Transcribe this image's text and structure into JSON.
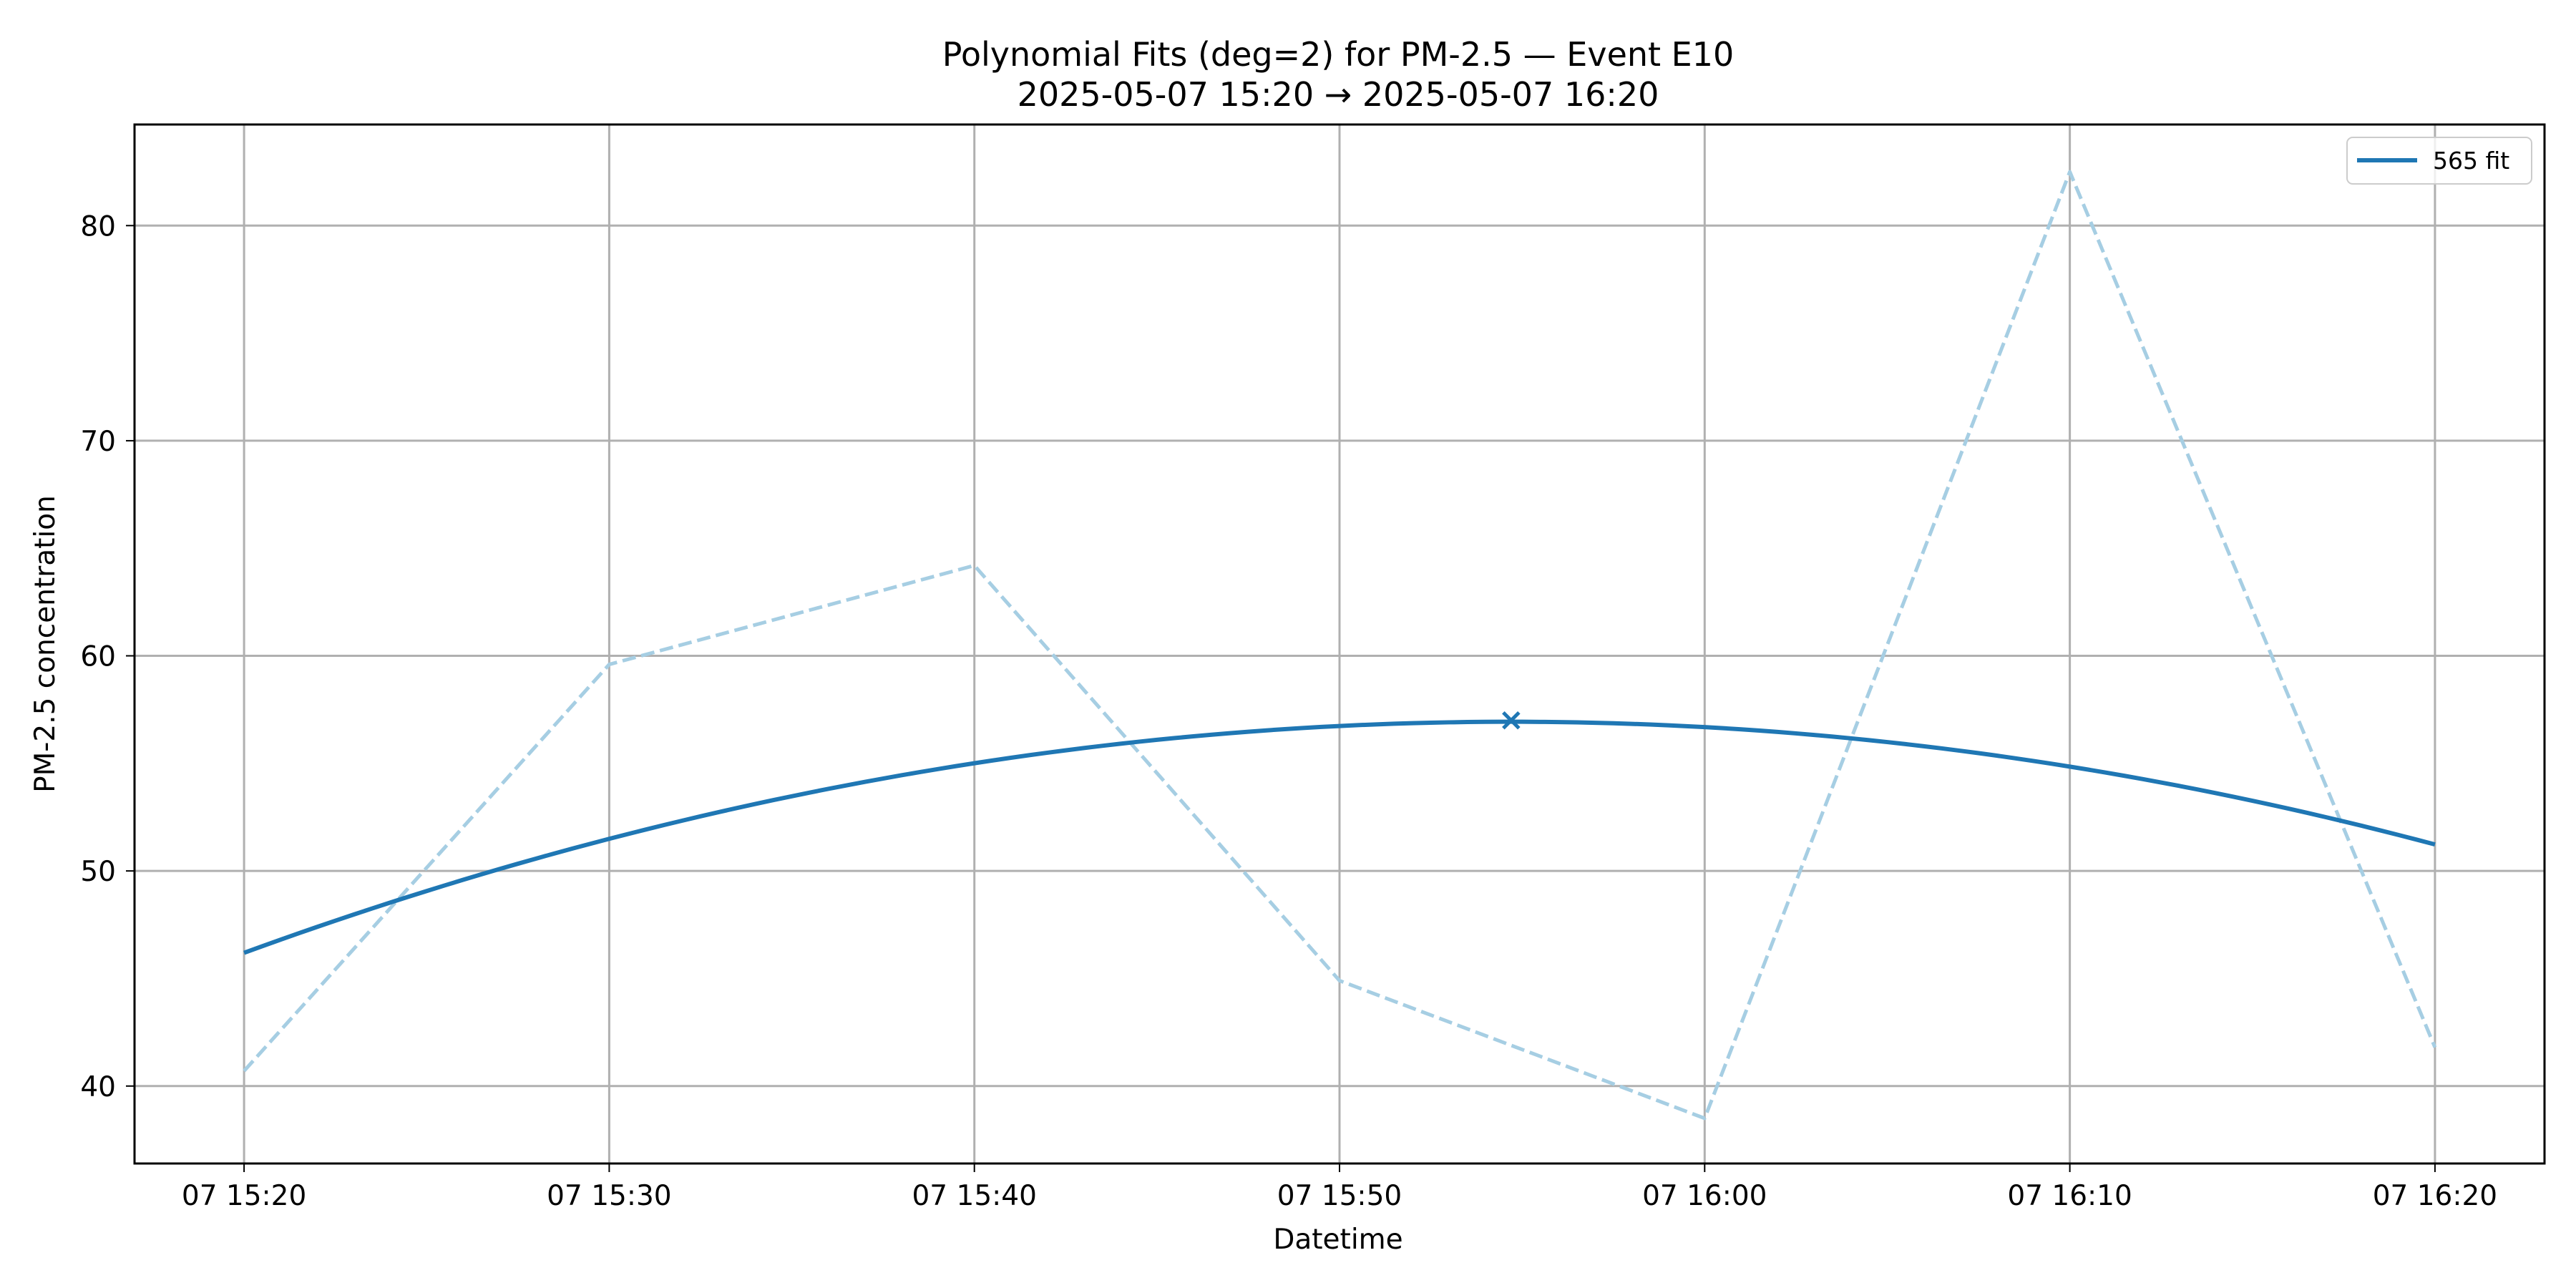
{
  "chart_data": {
    "type": "line",
    "title": "Polynomial Fits (deg=2) for PM-2.5 — Event E10",
    "subtitle": "2025-05-07 15:20 → 2025-05-07 16:20",
    "xlabel": "Datetime",
    "ylabel": "PM-2.5 concentration",
    "x_tick_labels": [
      "07 15:20",
      "07 15:30",
      "07 15:40",
      "07 15:50",
      "07 16:00",
      "07 16:10",
      "07 16:20"
    ],
    "x_ticks": [
      "2025-05-07 15:20",
      "2025-05-07 15:30",
      "2025-05-07 15:40",
      "2025-05-07 15:50",
      "2025-05-07 16:00",
      "2025-05-07 16:10",
      "2025-05-07 16:20"
    ],
    "xlim": [
      "2025-05-07 15:17",
      "2025-05-07 16:23"
    ],
    "y_ticks": [
      40,
      50,
      60,
      70,
      80
    ],
    "ylim": [
      36.4,
      84.7
    ],
    "grid": true,
    "legend_position": "top-right",
    "series": [
      {
        "name": "",
        "style": "dashed",
        "color": "#a6cee3",
        "x": [
          "2025-05-07 15:20",
          "2025-05-07 15:30",
          "2025-05-07 15:40",
          "2025-05-07 15:50",
          "2025-05-07 16:00",
          "2025-05-07 16:10",
          "2025-05-07 16:20"
        ],
        "y": [
          40.7,
          59.6,
          64.2,
          44.9,
          38.5,
          82.5,
          41.8
        ]
      },
      {
        "name": "565 fit",
        "style": "solid",
        "color": "#1f77b4",
        "x": [
          "2025-05-07 15:20",
          "2025-05-07 15:30",
          "2025-05-07 15:40",
          "2025-05-07 15:50",
          "2025-05-07 16:00",
          "2025-05-07 16:10",
          "2025-05-07 16:20"
        ],
        "y": [
          46.2,
          51.5,
          55.0,
          56.7,
          56.7,
          54.9,
          51.2
        ]
      }
    ],
    "annotations": [
      {
        "marker": "x",
        "color": "#1f77b4",
        "x": "2025-05-07 15:54.7",
        "y": 57.0
      }
    ]
  }
}
